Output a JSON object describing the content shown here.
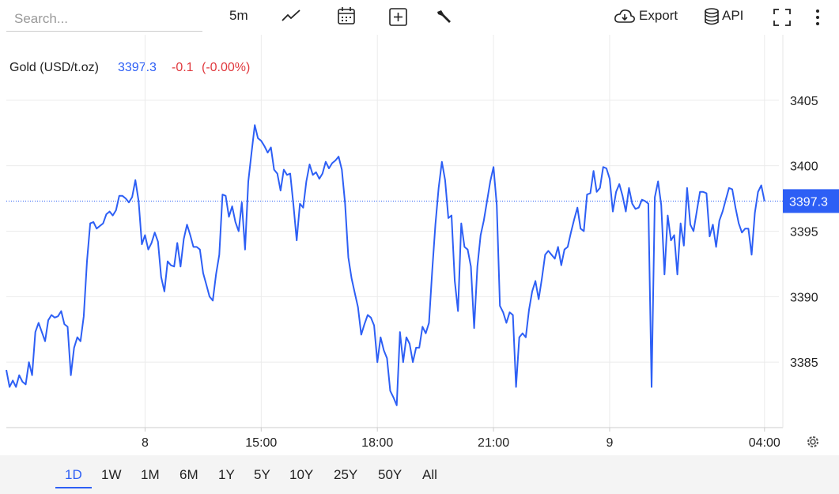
{
  "toolbar": {
    "search_placeholder": "Search...",
    "interval": "5m",
    "export": "Export",
    "api": "API"
  },
  "chart_data": {
    "type": "line",
    "title": "Gold (USD/t.oz)",
    "last_price": 3397.3,
    "change": -0.1,
    "change_percent": {
      "value": 0,
      "label": "(-0.00%)"
    },
    "color": "#2d5ff5",
    "x": [
      0,
      1,
      2,
      3,
      4,
      5,
      6,
      7,
      8,
      9,
      10,
      11,
      12,
      13,
      14,
      15,
      16,
      17,
      18,
      19,
      20,
      21,
      22,
      23,
      24,
      25,
      26,
      27,
      28,
      29,
      30,
      31,
      32,
      33,
      34,
      35,
      36,
      37,
      38,
      39,
      40,
      41,
      42,
      43,
      44,
      45,
      46,
      47,
      48,
      49,
      50,
      51,
      52,
      53,
      54,
      55,
      56,
      57,
      58,
      59,
      60,
      61,
      62,
      63,
      64,
      65,
      66,
      67,
      68,
      69,
      70,
      71,
      72,
      73,
      74,
      75,
      76,
      77,
      78,
      79,
      80,
      81,
      82,
      83,
      84,
      85,
      86,
      87,
      88,
      89,
      90,
      91,
      92,
      93,
      94,
      95,
      96,
      97,
      98,
      99,
      100,
      101,
      102,
      103,
      104,
      105,
      106,
      107,
      108,
      109,
      110,
      111,
      112,
      113,
      114,
      115,
      116,
      117,
      118,
      119,
      120,
      121,
      122,
      123,
      124,
      125,
      126,
      127,
      128,
      129,
      130,
      131,
      132,
      133,
      134,
      135,
      136,
      137,
      138,
      139,
      140,
      141,
      142,
      143,
      144,
      145,
      146,
      147,
      148,
      149,
      150,
      151,
      152,
      153,
      154,
      155,
      156,
      157,
      158,
      159,
      160,
      161,
      162,
      163,
      164,
      165,
      166,
      167,
      168,
      169,
      170,
      171,
      172,
      173,
      174,
      175,
      176,
      177,
      178,
      179,
      180,
      181,
      182,
      183,
      184,
      185,
      186,
      187,
      188,
      189,
      190,
      191,
      192,
      193,
      194,
      195,
      196,
      197,
      198,
      199,
      200,
      201,
      202,
      203,
      204,
      205,
      206,
      207,
      208,
      209,
      210,
      211,
      212,
      213,
      214,
      215,
      216,
      217,
      218,
      219,
      220,
      221,
      222,
      223,
      224,
      225,
      226,
      227,
      228,
      229,
      230,
      231,
      232,
      233,
      234,
      235
    ],
    "values": [
      3384.4,
      3383.1,
      3383.6,
      3383.1,
      3384.0,
      3383.5,
      3383.3,
      3385.0,
      3384.0,
      3387.3,
      3388.0,
      3387.3,
      3386.6,
      3388.2,
      3388.6,
      3388.4,
      3388.5,
      3388.9,
      3387.9,
      3387.7,
      3384.0,
      3386.1,
      3386.9,
      3386.6,
      3388.5,
      3392.7,
      3395.6,
      3395.7,
      3395.2,
      3395.4,
      3395.6,
      3396.3,
      3396.5,
      3396.2,
      3396.6,
      3397.7,
      3397.7,
      3397.5,
      3397.2,
      3397.6,
      3398.9,
      3397.3,
      3394.0,
      3394.7,
      3393.6,
      3394.1,
      3394.9,
      3394.2,
      3391.5,
      3390.4,
      3392.7,
      3392.4,
      3392.3,
      3394.1,
      3392.3,
      3394.4,
      3395.5,
      3394.7,
      3393.8,
      3393.8,
      3393.6,
      3391.8,
      3390.9,
      3390.0,
      3389.7,
      3391.7,
      3393.2,
      3397.8,
      3397.7,
      3396.1,
      3396.9,
      3395.7,
      3395.0,
      3397.2,
      3393.6,
      3398.8,
      3401.0,
      3403.1,
      3402.1,
      3401.9,
      3401.5,
      3401.0,
      3401.4,
      3399.7,
      3399.4,
      3398.1,
      3399.7,
      3399.3,
      3399.4,
      3397.0,
      3394.3,
      3397.1,
      3396.8,
      3398.8,
      3400.1,
      3399.3,
      3399.5,
      3399.0,
      3399.4,
      3400.3,
      3399.8,
      3400.2,
      3400.4,
      3400.7,
      3399.7,
      3397.1,
      3393.0,
      3391.4,
      3390.3,
      3389.2,
      3387.1,
      3387.9,
      3388.6,
      3388.4,
      3387.8,
      3385.0,
      3386.9,
      3385.9,
      3385.3,
      3382.8,
      3382.3,
      3381.7,
      3387.3,
      3385.0,
      3386.9,
      3386.4,
      3385.0,
      3386.1,
      3386.1,
      3387.7,
      3387.2,
      3388.0,
      3392.0,
      3395.5,
      3398.3,
      3400.3,
      3398.9,
      3396.0,
      3396.2,
      3391.2,
      3388.9,
      3395.6,
      3393.8,
      3393.6,
      3392.3,
      3387.6,
      3392.3,
      3394.7,
      3395.8,
      3397.3,
      3398.8,
      3399.9,
      3397.0,
      3389.3,
      3388.8,
      3388.0,
      3388.8,
      3388.6,
      3383.1,
      3386.9,
      3387.2,
      3386.9,
      3389.0,
      3390.4,
      3391.2,
      3389.8,
      3391.4,
      3393.2,
      3393.5,
      3393.2,
      3392.9,
      3393.8,
      3392.4,
      3393.6,
      3393.8,
      3394.9,
      3395.9,
      3396.8,
      3395.2,
      3395.0,
      3397.8,
      3397.9,
      3399.6,
      3398.0,
      3398.3,
      3399.9,
      3399.8,
      3399.0,
      3396.5,
      3398.0,
      3398.6,
      3397.7,
      3396.5,
      3398.3,
      3397.1,
      3396.7,
      3396.8,
      3397.4,
      3397.3,
      3397.1,
      3383.1,
      3397.6,
      3398.8,
      3397.0,
      3391.7,
      3396.2,
      3394.3,
      3394.7,
      3391.7,
      3395.6,
      3393.9,
      3398.3,
      3395.5,
      3395.0,
      3396.5,
      3398.0,
      3398.0,
      3397.9,
      3394.6,
      3395.5,
      3393.8,
      3395.8,
      3396.5,
      3397.4,
      3398.3,
      3398.2,
      3396.8,
      3395.6,
      3394.9,
      3395.2,
      3395.2,
      3393.2,
      3396.4,
      3398.0,
      3398.5,
      3397.3
    ],
    "xlim": [
      0,
      240
    ],
    "xticks": [
      {
        "value": 43,
        "label": "8"
      },
      {
        "value": 79,
        "label": "15:00"
      },
      {
        "value": 115,
        "label": "18:00"
      },
      {
        "value": 151,
        "label": "21:00"
      },
      {
        "value": 187,
        "label": "9"
      },
      {
        "value": 235,
        "label": "04:00"
      }
    ],
    "ylim": [
      3380,
      3410
    ],
    "yticks": [
      3385,
      3390,
      3395,
      3400,
      3405
    ],
    "grid": true
  },
  "ranges": [
    "1D",
    "1W",
    "1M",
    "6M",
    "1Y",
    "5Y",
    "10Y",
    "25Y",
    "50Y",
    "All"
  ],
  "active_range": 0
}
